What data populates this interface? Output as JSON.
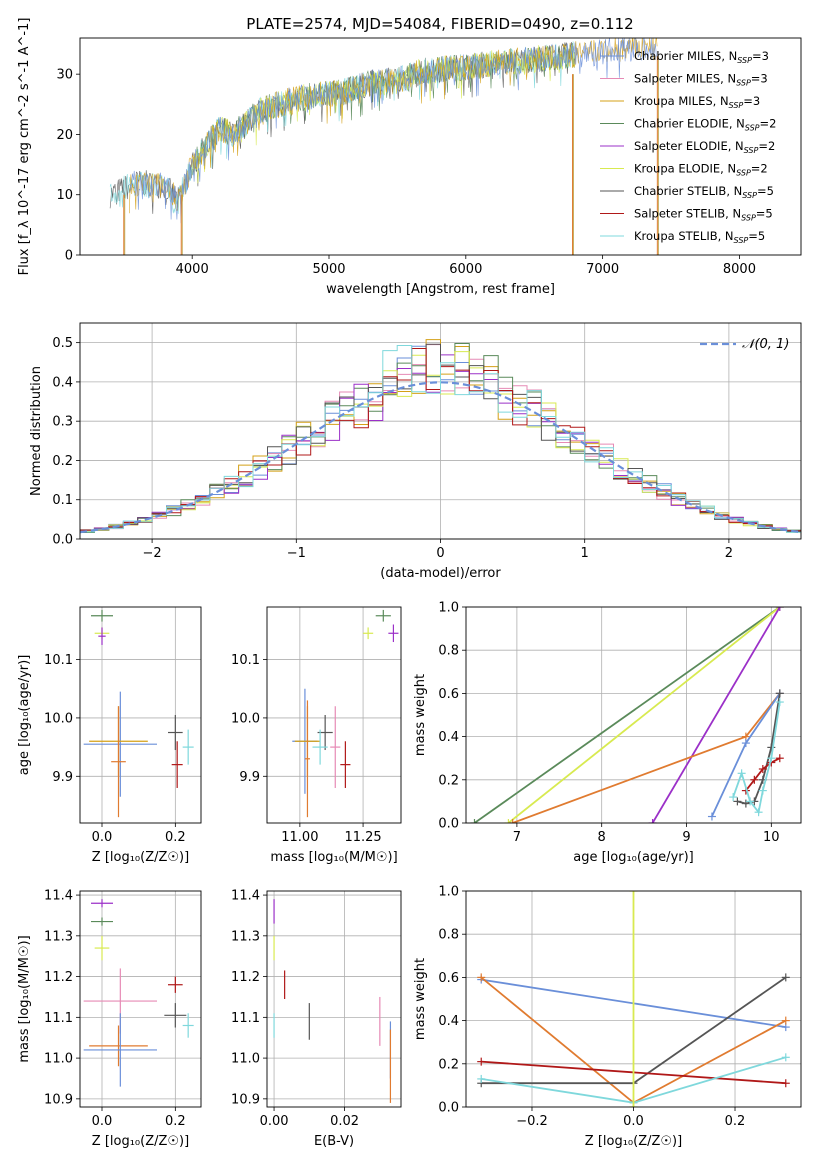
{
  "title": "PLATE=2574, MJD=54084, FIBERID=0490, z=0.112",
  "colors": {
    "Chabrier MILES": "#6a8fd9",
    "Salpeter MILES": "#e68ab5",
    "Kroupa MILES": "#d4a017",
    "Chabrier ELODIE": "#5a8a5a",
    "Salpeter ELODIE": "#9b30c8",
    "Kroupa ELODIE": "#d8ea50",
    "Chabrier STELIB": "#555555",
    "Salpeter STELIB": "#b01818",
    "Kroupa STELIB": "#7fd8dc",
    "orange": "#e07b30",
    "normal": "#6a8fd9"
  },
  "chart_data": [
    {
      "type": "line",
      "panel": "spectrum",
      "xlabel": "wavelength [Angstrom, rest frame]",
      "ylabel": "Flux [f_λ 10^-17 erg cm^-2 s^-1 A^-1]",
      "xlim": [
        3180,
        8450
      ],
      "ylim": [
        0,
        36
      ],
      "xticks": [
        "4000",
        "5000",
        "6000",
        "7000",
        "8000"
      ],
      "yticks": [
        "0",
        "10",
        "20",
        "30"
      ],
      "grid": false,
      "legend": {
        "position": "top-right",
        "entries": [
          {
            "name": "Chabrier MILES",
            "nssp": "3"
          },
          {
            "name": "Salpeter MILES",
            "nssp": "3"
          },
          {
            "name": "Kroupa MILES",
            "nssp": "3"
          },
          {
            "name": "Chabrier ELODIE",
            "nssp": "2"
          },
          {
            "name": "Salpeter ELODIE",
            "nssp": "2"
          },
          {
            "name": "Kroupa ELODIE",
            "nssp": "2"
          },
          {
            "name": "Chabrier STELIB",
            "nssp": "5"
          },
          {
            "name": "Salpeter STELIB",
            "nssp": "5"
          },
          {
            "name": "Kroupa STELIB",
            "nssp": "5"
          }
        ]
      },
      "continuum_x": [
        3400,
        3600,
        3800,
        3900,
        4000,
        4100,
        4200,
        4300,
        4500,
        4700,
        4900,
        5100,
        5300,
        5500,
        5700,
        5900,
        6100,
        6300,
        6500,
        6700,
        6900,
        7100,
        7300,
        7500,
        7700,
        7900,
        8100
      ],
      "continuum_y": [
        10,
        12,
        11.5,
        9,
        15,
        18,
        21,
        20,
        24,
        25.5,
        26.5,
        27,
        28.5,
        29,
        30.5,
        31,
        31.5,
        32,
        32.5,
        33,
        33.5,
        34,
        34.5,
        34,
        33.5,
        33,
        32.5
      ],
      "drops": [
        {
          "x": 3500,
          "y_top": 10
        },
        {
          "x": 3920,
          "y_top": 10
        },
        {
          "x": 6780,
          "y_top": 30
        },
        {
          "x": 7400,
          "y_top": 33
        }
      ]
    },
    {
      "type": "histogram",
      "panel": "residuals",
      "xlabel": "(data-model)/error",
      "ylabel": "Normed distribution",
      "xlim": [
        -2.5,
        2.5
      ],
      "ylim": [
        0,
        0.55
      ],
      "xticks": [
        "−2",
        "−1",
        "0",
        "1",
        "2"
      ],
      "yticks": [
        "0.0",
        "0.1",
        "0.2",
        "0.3",
        "0.4",
        "0.5"
      ],
      "grid": true,
      "bin_width": 0.1,
      "reference_curve": {
        "name": "𝒩(0, 1)",
        "mean": 0,
        "sigma": 1,
        "style": "dashed"
      }
    },
    {
      "type": "scatter",
      "panel": "age-vs-Z",
      "xlabel": "Z [log10(Z/Z⊙)]",
      "ylabel": "age [log10(age/yr)]",
      "xlim": [
        -0.06,
        0.27
      ],
      "ylim": [
        9.82,
        10.19
      ],
      "xticks": [
        "0.0",
        "0.2"
      ],
      "yticks": [
        "9.9",
        "10.0",
        "10.1"
      ],
      "grid": true,
      "points": [
        {
          "series": "Chabrier ELODIE",
          "x": 0.0,
          "y": 10.175,
          "xerr": 0.03,
          "yerr": 0.01
        },
        {
          "series": "Kroupa ELODIE",
          "x": 0.0,
          "y": 10.145,
          "xerr": 0.02,
          "yerr": 0.01
        },
        {
          "series": "Salpeter ELODIE",
          "x": 0.0,
          "y": 10.14,
          "xerr": 0.01,
          "yerr": 0.015
        },
        {
          "series": "Chabrier MILES",
          "x": 0.05,
          "y": 9.955,
          "xerr": 0.1,
          "yerr": 0.09
        },
        {
          "series": "Kroupa MILES",
          "x": 0.045,
          "y": 9.96,
          "xerr": 0.08,
          "yerr": 0.06
        },
        {
          "series": "orange",
          "x": 0.045,
          "y": 9.925,
          "xerr": 0.02,
          "yerr": 0.095
        },
        {
          "series": "Chabrier STELIB",
          "x": 0.2,
          "y": 9.975,
          "xerr": 0.02,
          "yerr": 0.03
        },
        {
          "series": "Salpeter STELIB",
          "x": 0.205,
          "y": 9.92,
          "xerr": 0.015,
          "yerr": 0.04
        },
        {
          "series": "Kroupa STELIB",
          "x": 0.235,
          "y": 9.95,
          "xerr": 0.015,
          "yerr": 0.03
        }
      ]
    },
    {
      "type": "scatter",
      "panel": "age-vs-mass",
      "xlabel": "mass [log10(M/M⊙)]",
      "ylabel": "",
      "xlim": [
        10.87,
        11.4
      ],
      "ylim": [
        9.82,
        10.19
      ],
      "xticks": [
        "11.00",
        "11.25"
      ],
      "yticks": [
        "9.9",
        "10.0",
        "10.1"
      ],
      "grid": true,
      "points": [
        {
          "series": "Kroupa ELODIE",
          "x": 11.27,
          "y": 10.145,
          "xerr": 0.02,
          "yerr": 0.01
        },
        {
          "series": "Chabrier ELODIE",
          "x": 11.33,
          "y": 10.175,
          "xerr": 0.03,
          "yerr": 0.01
        },
        {
          "series": "Salpeter ELODIE",
          "x": 11.37,
          "y": 10.145,
          "xerr": 0.02,
          "yerr": 0.015
        },
        {
          "series": "Chabrier MILES",
          "x": 11.02,
          "y": 9.96,
          "xerr": 0.05,
          "yerr": 0.09
        },
        {
          "series": "Kroupa MILES",
          "x": 11.03,
          "y": 9.96,
          "xerr": 0.05,
          "yerr": 0.06
        },
        {
          "series": "orange",
          "x": 11.03,
          "y": 9.93,
          "xerr": 0.01,
          "yerr": 0.1
        },
        {
          "series": "Chabrier STELIB",
          "x": 11.1,
          "y": 9.975,
          "xerr": 0.03,
          "yerr": 0.03
        },
        {
          "series": "Kroupa STELIB",
          "x": 11.08,
          "y": 9.95,
          "xerr": 0.03,
          "yerr": 0.03
        },
        {
          "series": "Salpeter MILES",
          "x": 11.14,
          "y": 9.95,
          "xerr": 0.02,
          "yerr": 0.07
        },
        {
          "series": "Salpeter STELIB",
          "x": 11.18,
          "y": 9.92,
          "xerr": 0.02,
          "yerr": 0.04
        }
      ]
    },
    {
      "type": "line",
      "panel": "mass-weight-vs-age",
      "xlabel": "age [log10(age/yr)]",
      "ylabel": "mass weight",
      "xlim": [
        6.4,
        10.35
      ],
      "ylim": [
        0,
        1
      ],
      "xticks": [
        "7",
        "8",
        "9",
        "10"
      ],
      "yticks": [
        "0.0",
        "0.2",
        "0.4",
        "0.6",
        "0.8",
        "1.0"
      ],
      "grid": true,
      "series": [
        {
          "name": "Chabrier ELODIE",
          "x": [
            6.5,
            10.1
          ],
          "y": [
            0.0,
            1.0
          ]
        },
        {
          "name": "Kroupa ELODIE",
          "x": [
            6.9,
            10.1
          ],
          "y": [
            0.0,
            1.0
          ]
        },
        {
          "name": "Salpeter ELODIE",
          "x": [
            8.6,
            10.1
          ],
          "y": [
            0.0,
            1.0
          ]
        },
        {
          "name": "orange",
          "x": [
            6.95,
            9.7,
            10.1
          ],
          "y": [
            0.0,
            0.4,
            0.6
          ]
        },
        {
          "name": "Chabrier MILES",
          "x": [
            9.3,
            9.7,
            10.1
          ],
          "y": [
            0.03,
            0.37,
            0.6
          ]
        },
        {
          "name": "Chabrier STELIB",
          "x": [
            9.6,
            9.7,
            9.8,
            9.9,
            10.0,
            10.1
          ],
          "y": [
            0.1,
            0.09,
            0.1,
            0.2,
            0.35,
            0.6
          ]
        },
        {
          "name": "Salpeter STELIB",
          "x": [
            9.7,
            9.8,
            9.9,
            10.0,
            10.1
          ],
          "y": [
            0.15,
            0.2,
            0.25,
            0.28,
            0.3
          ]
        },
        {
          "name": "Kroupa STELIB",
          "x": [
            9.55,
            9.65,
            9.75,
            9.85,
            9.9,
            10.0,
            10.1
          ],
          "y": [
            0.12,
            0.23,
            0.1,
            0.05,
            0.15,
            0.3,
            0.56
          ]
        }
      ]
    },
    {
      "type": "scatter",
      "panel": "mass-vs-Z",
      "xlabel": "Z [log10(Z/Z⊙)]",
      "ylabel": "mass [log10(M/M⊙)]",
      "xlim": [
        -0.06,
        0.27
      ],
      "ylim": [
        10.88,
        11.41
      ],
      "xticks": [
        "0.0",
        "0.2"
      ],
      "yticks": [
        "10.9",
        "11.0",
        "11.1",
        "11.2",
        "11.3",
        "11.4"
      ],
      "grid": true,
      "points": [
        {
          "series": "Salpeter ELODIE",
          "x": 0.0,
          "y": 11.38,
          "xerr": 0.03,
          "yerr": 0.01
        },
        {
          "series": "Chabrier ELODIE",
          "x": 0.0,
          "y": 11.335,
          "xerr": 0.03,
          "yerr": 0.01
        },
        {
          "series": "Kroupa ELODIE",
          "x": 0.0,
          "y": 11.27,
          "xerr": 0.02,
          "yerr": 0.03
        },
        {
          "series": "Salpeter MILES",
          "x": 0.05,
          "y": 11.14,
          "xerr": 0.1,
          "yerr": 0.08
        },
        {
          "series": "orange",
          "x": 0.045,
          "y": 11.03,
          "xerr": 0.08,
          "yerr": 0.05
        },
        {
          "series": "Chabrier MILES",
          "x": 0.05,
          "y": 11.02,
          "xerr": 0.1,
          "yerr": 0.09
        },
        {
          "series": "Salpeter STELIB",
          "x": 0.2,
          "y": 11.18,
          "xerr": 0.02,
          "yerr": 0.02
        },
        {
          "series": "Chabrier STELIB",
          "x": 0.2,
          "y": 11.105,
          "xerr": 0.03,
          "yerr": 0.03
        },
        {
          "series": "Kroupa STELIB",
          "x": 0.235,
          "y": 11.08,
          "xerr": 0.015,
          "yerr": 0.03
        }
      ]
    },
    {
      "type": "scatter",
      "panel": "mass-vs-ebv",
      "xlabel": "E(B-V)",
      "ylabel": "",
      "xlim": [
        -0.002,
        0.036
      ],
      "ylim": [
        10.88,
        11.41
      ],
      "xticks": [
        "0.00",
        "0.02"
      ],
      "yticks": [
        "10.9",
        "11.0",
        "11.1",
        "11.2",
        "11.3",
        "11.4"
      ],
      "grid": true,
      "points": [
        {
          "series": "Salpeter ELODIE",
          "x": 0.0,
          "y": 11.36,
          "xerr": 0,
          "yerr": 0.03
        },
        {
          "series": "Kroupa ELODIE",
          "x": 0.0,
          "y": 11.27,
          "xerr": 0,
          "yerr": 0.03
        },
        {
          "series": "Salpeter STELIB",
          "x": 0.003,
          "y": 11.18,
          "xerr": 0,
          "yerr": 0.035
        },
        {
          "series": "Chabrier STELIB",
          "x": 0.01,
          "y": 11.09,
          "xerr": 0,
          "yerr": 0.045
        },
        {
          "series": "Kroupa STELIB",
          "x": 0.0,
          "y": 11.08,
          "xerr": 0,
          "yerr": 0.03
        },
        {
          "series": "Salpeter MILES",
          "x": 0.03,
          "y": 11.09,
          "xerr": 0,
          "yerr": 0.06
        },
        {
          "series": "Chabrier MILES",
          "x": 0.033,
          "y": 11.02,
          "xerr": 0,
          "yerr": 0.07
        },
        {
          "series": "orange",
          "x": 0.033,
          "y": 10.98,
          "xerr": 0,
          "yerr": 0.09
        }
      ]
    },
    {
      "type": "line",
      "panel": "mass-weight-vs-Z",
      "xlabel": "Z [log10(Z/Z⊙)]",
      "ylabel": "mass weight",
      "xlim": [
        -0.33,
        0.33
      ],
      "ylim": [
        0,
        1
      ],
      "xticks": [
        "−0.2",
        "0.0",
        "0.2"
      ],
      "yticks": [
        "0.0",
        "0.2",
        "0.4",
        "0.6",
        "0.8",
        "1.0"
      ],
      "grid": true,
      "series": [
        {
          "name": "Chabrier MILES",
          "x": [
            -0.3,
            0.3
          ],
          "y": [
            0.59,
            0.37
          ]
        },
        {
          "name": "orange",
          "x": [
            -0.3,
            0.0,
            0.3
          ],
          "y": [
            0.6,
            0.02,
            0.4
          ]
        },
        {
          "name": "Chabrier STELIB",
          "x": [
            -0.3,
            0.0,
            0.3
          ],
          "y": [
            0.11,
            0.11,
            0.6
          ]
        },
        {
          "name": "Salpeter STELIB",
          "x": [
            -0.3,
            0.3
          ],
          "y": [
            0.21,
            0.11
          ]
        },
        {
          "name": "Kroupa STELIB",
          "x": [
            -0.3,
            0.0,
            0.3
          ],
          "y": [
            0.13,
            0.02,
            0.23
          ]
        },
        {
          "name": "Kroupa ELODIE",
          "x": [
            0.0,
            0.0
          ],
          "y": [
            0.0,
            1.0
          ]
        }
      ]
    }
  ]
}
